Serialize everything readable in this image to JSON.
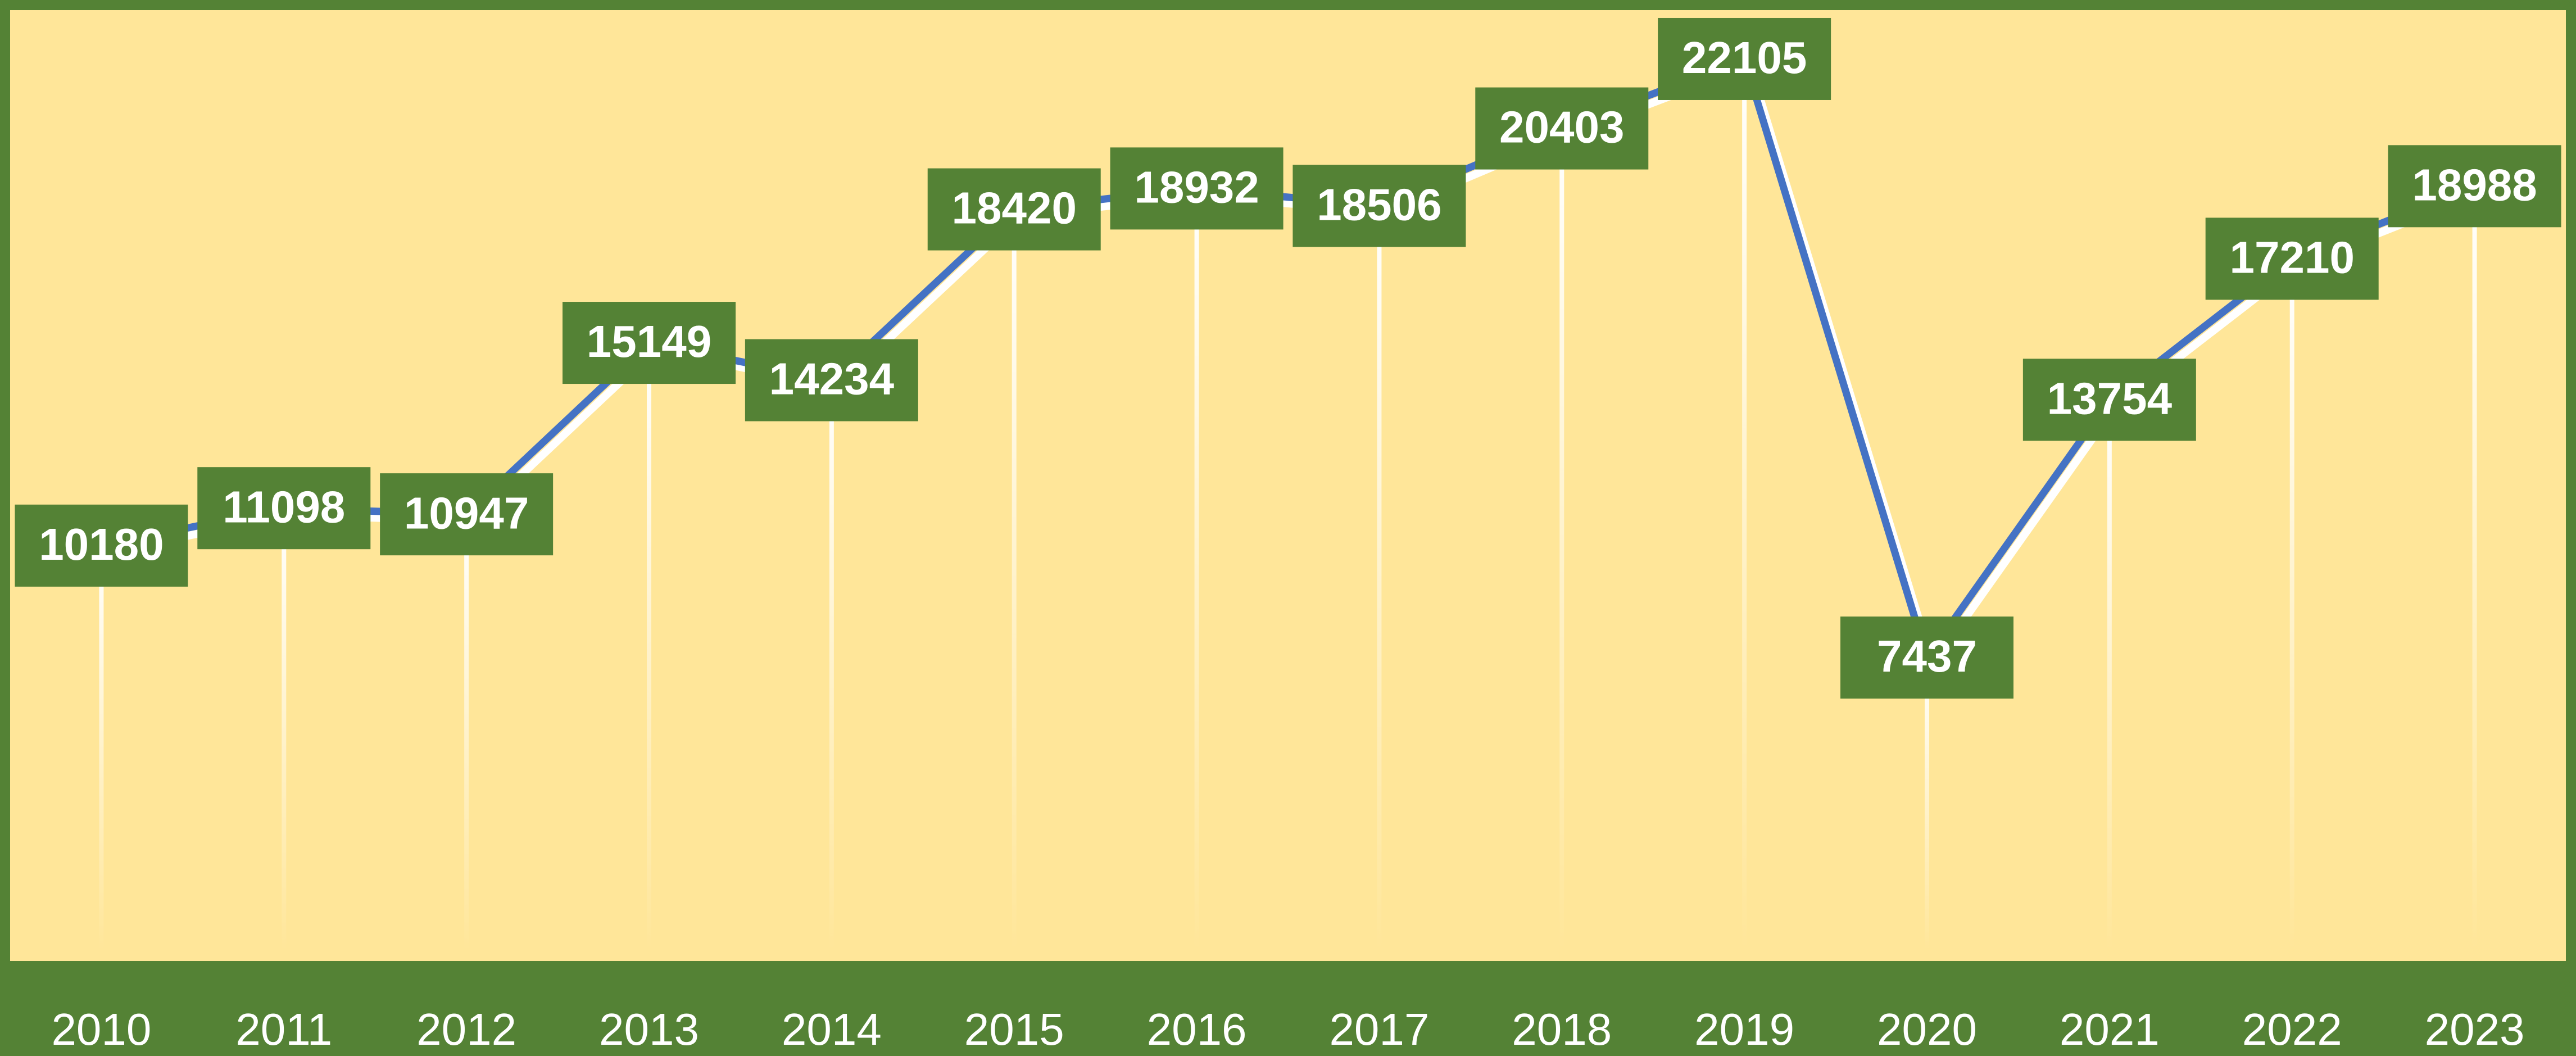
{
  "chart_data": {
    "type": "line",
    "categories": [
      "2010",
      "2011",
      "2012",
      "2013",
      "2014",
      "2015",
      "2016",
      "2017",
      "2018",
      "2019",
      "2020",
      "2021",
      "2022",
      "2023"
    ],
    "values": [
      10180,
      11098,
      10947,
      15149,
      14234,
      18420,
      18932,
      18506,
      20403,
      22105,
      7437,
      13754,
      17210,
      18988
    ],
    "color": "#4472c4",
    "ylim": [
      0,
      23000
    ]
  }
}
